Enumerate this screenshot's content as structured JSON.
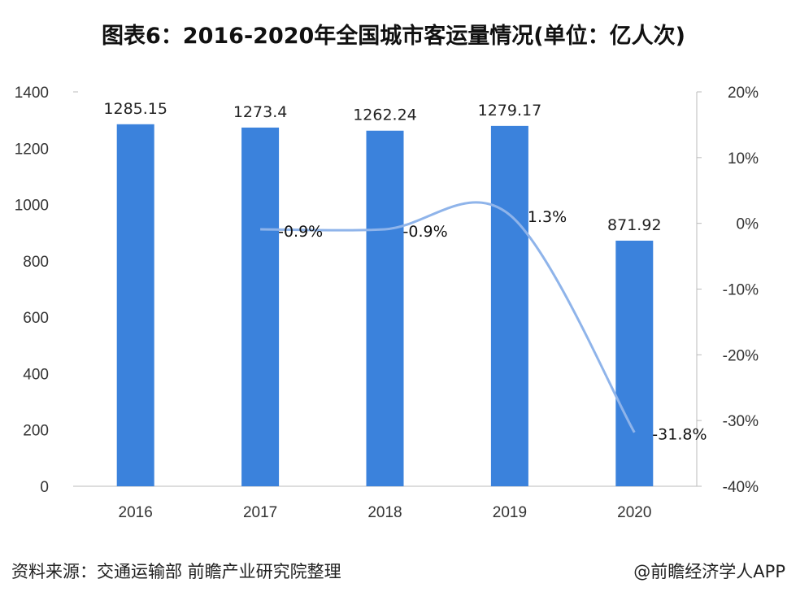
{
  "chart_data": {
    "type": "bar+line",
    "title": "图表6：2016-2020年全国城市客运量情况(单位：亿人次)",
    "categories": [
      "2016",
      "2017",
      "2018",
      "2019",
      "2020"
    ],
    "series": [
      {
        "type": "bar",
        "axis": "left",
        "values": [
          1285.15,
          1273.4,
          1262.24,
          1279.17,
          871.92
        ],
        "labels": [
          "1285.15",
          "1273.4",
          "1262.24",
          "1279.17",
          "871.92"
        ],
        "color": "#3b82dc"
      },
      {
        "type": "line",
        "axis": "right",
        "smooth": true,
        "x": [
          "2017",
          "2018",
          "2019",
          "2020"
        ],
        "values": [
          -0.9,
          -0.9,
          1.3,
          -31.8
        ],
        "labels": [
          "-0.9%",
          "-0.9%",
          "1.3%",
          "-31.8%"
        ],
        "color": "#8fb4ea"
      }
    ],
    "left_axis": {
      "ylim": [
        0,
        1400
      ],
      "ticks": [
        "0",
        "200",
        "400",
        "600",
        "800",
        "1000",
        "1200",
        "1400"
      ]
    },
    "right_axis": {
      "ylim": [
        -40,
        20
      ],
      "ticks": [
        "-40%",
        "-30%",
        "-20%",
        "-10%",
        "0%",
        "10%",
        "20%"
      ]
    },
    "grid": false
  },
  "footer": {
    "source": "资料来源：交通运输部 前瞻产业研究院整理",
    "brand": "@前瞻经济学人APP"
  }
}
